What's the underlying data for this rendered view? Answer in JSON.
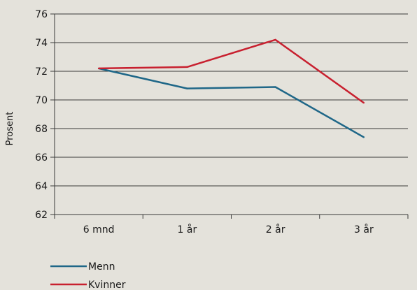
{
  "chart_data": {
    "type": "line",
    "title": "",
    "xlabel": "",
    "ylabel": "Prosent",
    "categories": [
      "6 mnd",
      "1 år",
      "2 år",
      "3 år"
    ],
    "ylim": [
      62,
      76
    ],
    "yticks": [
      62,
      64,
      66,
      68,
      70,
      72,
      74,
      76
    ],
    "grid": true,
    "legend_position": "bottom-left",
    "series": [
      {
        "name": "Menn",
        "color": "#1f6788",
        "values": [
          72.2,
          70.8,
          70.9,
          67.4
        ]
      },
      {
        "name": "Kvinner",
        "color": "#c8202f",
        "values": [
          72.2,
          72.3,
          74.2,
          69.8
        ]
      }
    ]
  }
}
